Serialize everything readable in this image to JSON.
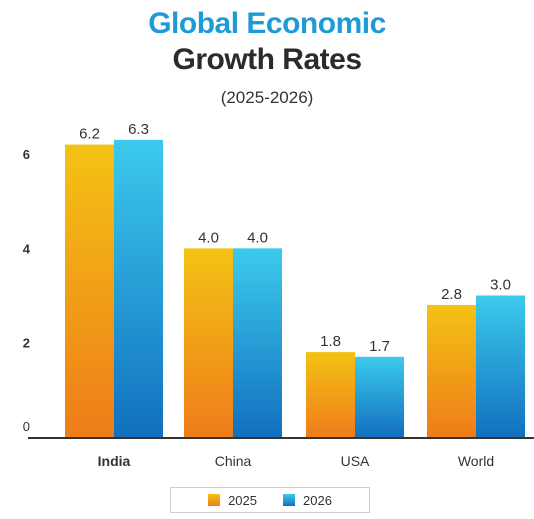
{
  "header": {
    "title_line1": "Global Economic",
    "title_line2": "Growth Rates",
    "subtitle": "(2025-2026)"
  },
  "colors": {
    "series_2025_top": "#f4c214",
    "series_2025_bottom": "#ee7d1a",
    "series_2026_top": "#3ccaec",
    "series_2026_bottom": "#1270bf",
    "axis": "#333333"
  },
  "chart_data": {
    "type": "bar",
    "categories": [
      "India",
      "China",
      "USA",
      "World"
    ],
    "series": [
      {
        "name": "2025",
        "values": [
          6.2,
          4.0,
          1.8,
          2.8
        ]
      },
      {
        "name": "2026",
        "values": [
          6.3,
          4.0,
          1.7,
          3.0
        ]
      }
    ],
    "data_labels": [
      [
        "6.2",
        "4.0",
        "1.8",
        "2.8"
      ],
      [
        "6.3",
        "4.0",
        "1.7",
        "3.0"
      ]
    ],
    "yticks": [
      "0",
      "2",
      "4",
      "6"
    ],
    "ylim": [
      0,
      6.5
    ],
    "legend_position": "bottom",
    "grid": false
  }
}
